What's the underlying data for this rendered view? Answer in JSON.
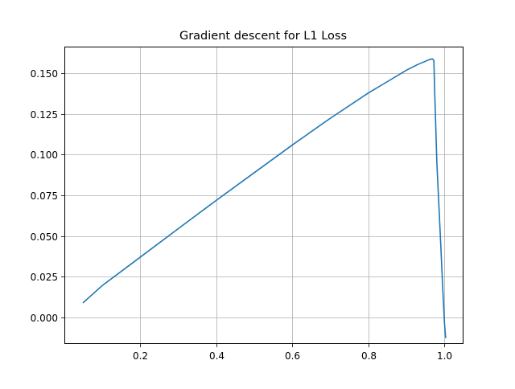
{
  "chart_data": {
    "type": "line",
    "title": "Gradient descent for L1 Loss",
    "xlabel": "",
    "ylabel": "",
    "xlim": [
      0.0,
      1.05
    ],
    "ylim": [
      -0.0165,
      0.1665
    ],
    "x_ticks": [
      0.2,
      0.4,
      0.6,
      0.8,
      1.0
    ],
    "x_tick_labels": [
      "0.2",
      "0.4",
      "0.6",
      "0.8",
      "1.0"
    ],
    "y_ticks": [
      0.0,
      0.025,
      0.05,
      0.075,
      0.1,
      0.125,
      0.15
    ],
    "y_tick_labels": [
      "0.000",
      "0.025",
      "0.050",
      "0.075",
      "0.100",
      "0.125",
      "0.150"
    ],
    "grid": true,
    "legend": "none",
    "colors": {
      "line": "#1f77b4",
      "grid": "#b0b0b0",
      "axes": "#000000"
    },
    "series": [
      {
        "x": [
          0.05,
          0.1,
          0.2,
          0.3,
          0.4,
          0.5,
          0.6,
          0.7,
          0.8,
          0.85,
          0.9,
          0.93,
          0.95,
          0.96,
          0.968,
          0.972,
          0.974,
          0.977,
          0.98,
          0.985,
          0.99,
          0.995,
          1.0,
          1.003
        ],
        "y": [
          0.009,
          0.0195,
          0.037,
          0.0545,
          0.072,
          0.089,
          0.106,
          0.1225,
          0.138,
          0.145,
          0.152,
          0.1555,
          0.1575,
          0.1585,
          0.159,
          0.158,
          0.14,
          0.118,
          0.095,
          0.07,
          0.045,
          0.02,
          -0.004,
          -0.0125
        ]
      }
    ]
  }
}
